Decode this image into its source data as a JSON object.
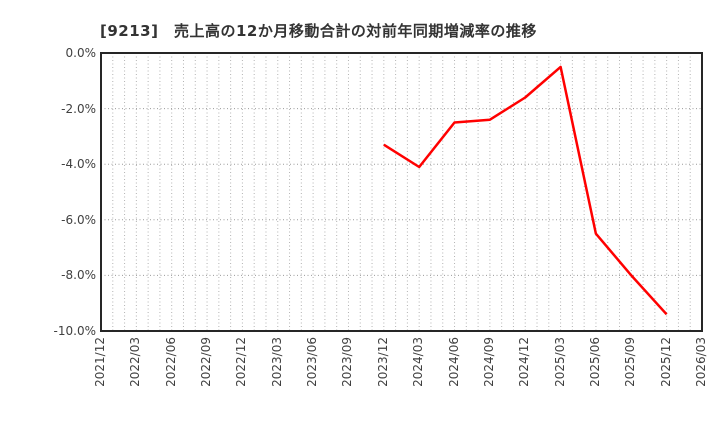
{
  "chart_data": {
    "type": "line",
    "title": "[9213]　売上高の12か月移動合計の対前年同期増減率の推移",
    "xlabel": "",
    "ylabel": "",
    "categories": [
      "2021/12",
      "2022/03",
      "2022/06",
      "2022/09",
      "2022/12",
      "2023/03",
      "2023/06",
      "2023/09",
      "2023/12",
      "2024/03",
      "2024/06",
      "2024/09",
      "2024/12",
      "2025/03",
      "2025/06",
      "2025/09",
      "2025/12",
      "2026/03"
    ],
    "series": [
      {
        "name": "売上高の12か月移動合計の対前年同期増減率",
        "color": "#ff0000",
        "values": [
          null,
          null,
          null,
          null,
          null,
          null,
          null,
          null,
          -3.3,
          -4.1,
          -2.5,
          -2.4,
          -1.6,
          -0.5,
          -6.5,
          -8.0,
          -9.4,
          null
        ]
      }
    ],
    "ylim": [
      -10,
      0
    ],
    "y_ticks": [
      {
        "value": 0,
        "label": "0.0%"
      },
      {
        "value": -2,
        "label": "-2.0%"
      },
      {
        "value": -4,
        "label": "-4.0%"
      },
      {
        "value": -6,
        "label": "-6.0%"
      },
      {
        "value": -8,
        "label": "-8.0%"
      },
      {
        "value": -10,
        "label": "-10.0%"
      }
    ],
    "grid": {
      "horizontal": true,
      "vertical": true,
      "minor_vertical_per_interval": 3
    },
    "legend_position": "none"
  },
  "colors": {
    "line": "#ff0000",
    "title_text": "#333333",
    "tick_text": "#404040",
    "frame": "#262626",
    "grid_horizontal": "#9a9a9a",
    "grid_vertical": "#b3b3b3",
    "background": "#ffffff"
  }
}
